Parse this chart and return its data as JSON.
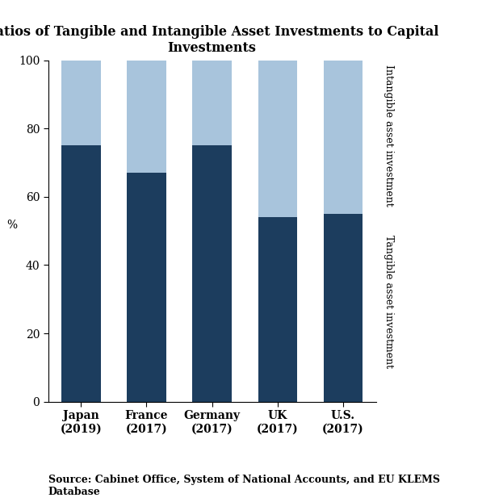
{
  "title": "Ratios of Tangible and Intangible Asset Investments to Capital\nInvestments",
  "categories": [
    "Japan\n(2019)",
    "France\n(2017)",
    "Germany\n(2017)",
    "UK\n(2017)",
    "U.S.\n(2017)"
  ],
  "tangible": [
    75,
    67,
    75,
    54,
    55
  ],
  "intangible": [
    25,
    33,
    25,
    46,
    45
  ],
  "color_tangible": "#1C3D5E",
  "color_intangible": "#A8C4DC",
  "ylabel": "%",
  "ylim": [
    0,
    100
  ],
  "yticks": [
    0,
    20,
    40,
    60,
    80,
    100
  ],
  "source_text": "Source: Cabinet Office, System of National Accounts, and EU KLEMS\nDatabase",
  "label_tangible": "Tangible asset investment",
  "label_intangible": "Intangible asset investment",
  "bar_width": 0.6,
  "title_fontsize": 11.5,
  "tick_fontsize": 10,
  "label_fontsize": 9,
  "source_fontsize": 9
}
